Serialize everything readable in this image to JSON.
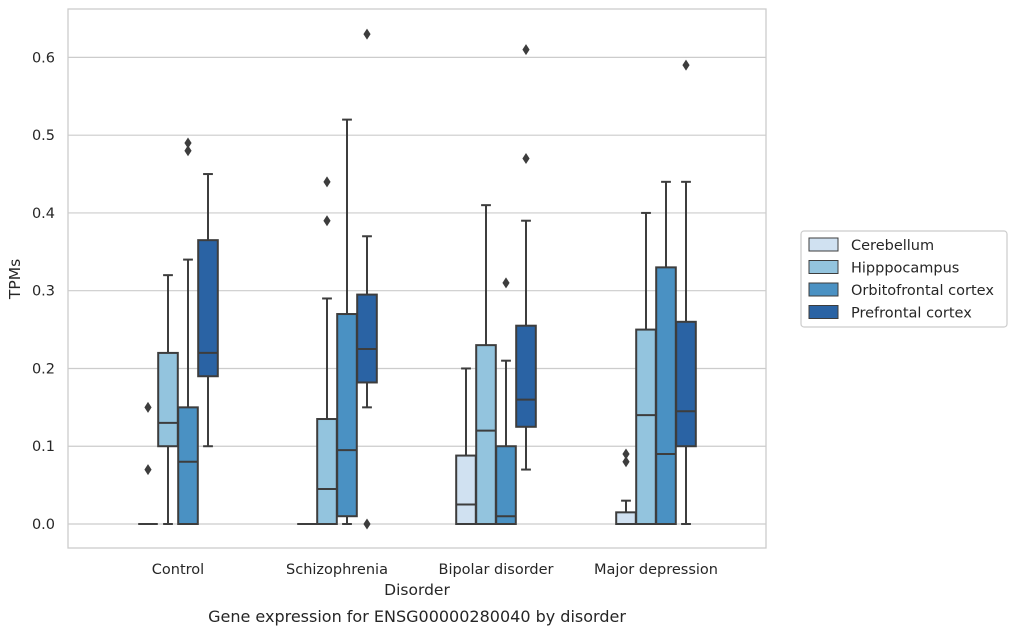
{
  "caption": "Gene expression for ENSG00000280040 by disorder",
  "chart_data": {
    "type": "box",
    "xlabel": "Disorder",
    "ylabel": "TPMs",
    "ylim": [
      -0.03,
      0.66
    ],
    "yticks": [
      "0.0",
      "0.1",
      "0.2",
      "0.3",
      "0.4",
      "0.5",
      "0.6"
    ],
    "grid": true,
    "legend_position": "right",
    "categories": [
      "Control",
      "Schizophrenia",
      "Bipolar disorder",
      "Major depression"
    ],
    "series": [
      {
        "name": "Cerebellum",
        "color": "#d0e1f1",
        "boxes": [
          {
            "whislo": 0,
            "q1": 0,
            "med": 0,
            "q3": 0,
            "whishi": 0,
            "fliers": [
              0.07,
              0.15
            ]
          },
          {
            "whislo": 0,
            "q1": 0,
            "med": 0,
            "q3": 0,
            "whishi": 0,
            "fliers": []
          },
          {
            "whislo": 0,
            "q1": 0,
            "med": 0.025,
            "q3": 0.088,
            "whishi": 0.2,
            "fliers": []
          },
          {
            "whislo": 0,
            "q1": 0,
            "med": 0,
            "q3": 0.015,
            "whishi": 0.03,
            "fliers": [
              0.08,
              0.09
            ]
          }
        ]
      },
      {
        "name": "Hipppocampus",
        "color": "#93c4de",
        "boxes": [
          {
            "whislo": 0,
            "q1": 0.1,
            "med": 0.13,
            "q3": 0.22,
            "whishi": 0.32,
            "fliers": []
          },
          {
            "whislo": 0,
            "q1": 0,
            "med": 0.045,
            "q3": 0.135,
            "whishi": 0.29,
            "fliers": [
              0.39,
              0.44
            ]
          },
          {
            "whislo": 0,
            "q1": 0,
            "med": 0.12,
            "q3": 0.23,
            "whishi": 0.41,
            "fliers": []
          },
          {
            "whislo": 0,
            "q1": 0,
            "med": 0.14,
            "q3": 0.25,
            "whishi": 0.4,
            "fliers": []
          }
        ]
      },
      {
        "name": "Orbitofrontal cortex",
        "color": "#4a91c3",
        "boxes": [
          {
            "whislo": 0,
            "q1": 0,
            "med": 0.08,
            "q3": 0.15,
            "whishi": 0.34,
            "fliers": [
              0.48,
              0.49
            ]
          },
          {
            "whislo": 0,
            "q1": 0.01,
            "med": 0.095,
            "q3": 0.27,
            "whishi": 0.52,
            "fliers": []
          },
          {
            "whislo": 0,
            "q1": 0,
            "med": 0.01,
            "q3": 0.1,
            "whishi": 0.21,
            "fliers": [
              0.31
            ]
          },
          {
            "whislo": 0,
            "q1": 0,
            "med": 0.09,
            "q3": 0.33,
            "whishi": 0.44,
            "fliers": []
          }
        ]
      },
      {
        "name": "Prefrontal cortex",
        "color": "#2a63a4",
        "boxes": [
          {
            "whislo": 0.1,
            "q1": 0.19,
            "med": 0.22,
            "q3": 0.365,
            "whishi": 0.45,
            "fliers": []
          },
          {
            "whislo": 0.15,
            "q1": 0.182,
            "med": 0.225,
            "q3": 0.295,
            "whishi": 0.37,
            "fliers": [
              0.0,
              0.63
            ]
          },
          {
            "whislo": 0.07,
            "q1": 0.125,
            "med": 0.16,
            "q3": 0.255,
            "whishi": 0.39,
            "fliers": [
              0.47,
              0.61
            ]
          },
          {
            "whislo": 0,
            "q1": 0.1,
            "med": 0.145,
            "q3": 0.26,
            "whishi": 0.44,
            "fliers": [
              0.59
            ]
          }
        ]
      }
    ]
  }
}
